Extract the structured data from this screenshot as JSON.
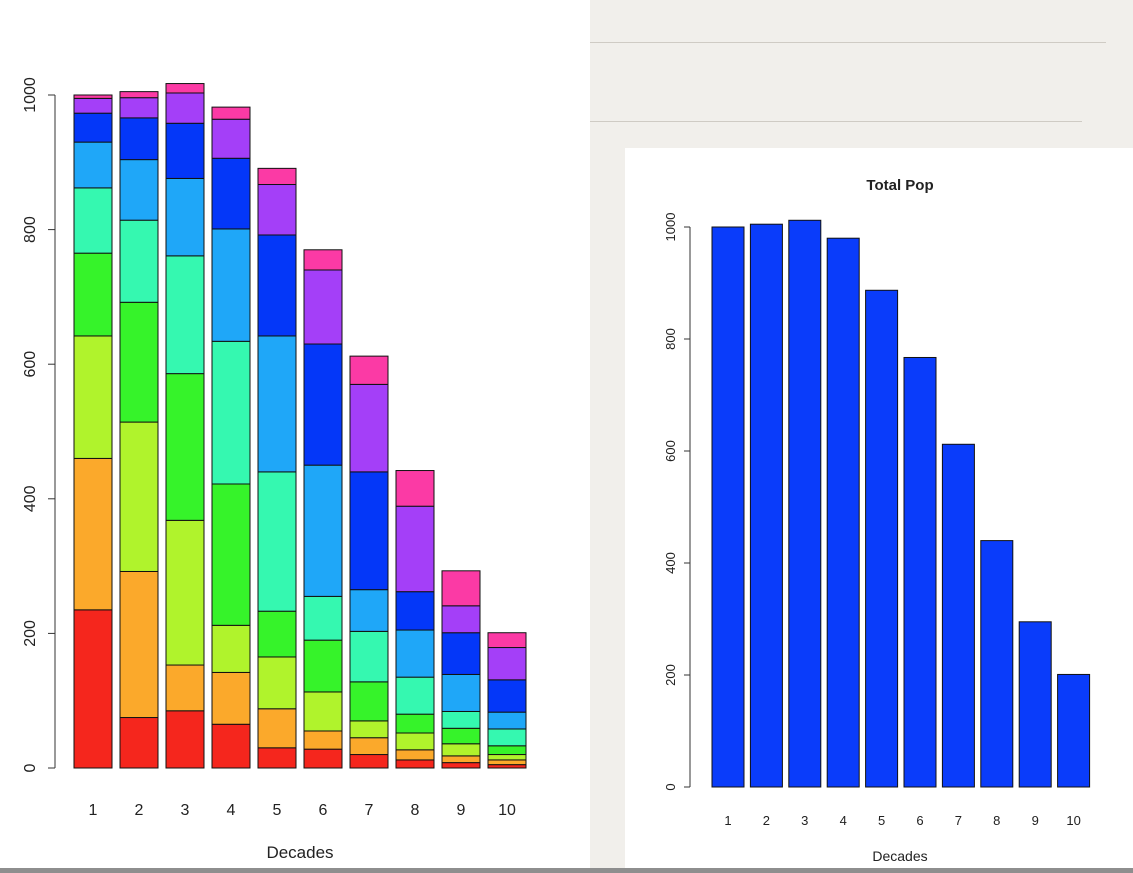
{
  "chart_data": [
    {
      "type": "bar",
      "stacked": true,
      "title": "",
      "xlabel": "Decades",
      "ylabel": "",
      "ylim": [
        0,
        1000
      ],
      "yticks": [
        0,
        200,
        400,
        600,
        800,
        1000
      ],
      "categories": [
        "1",
        "2",
        "3",
        "4",
        "5",
        "6",
        "7",
        "8",
        "9",
        "10"
      ],
      "series": [
        {
          "color": "#f5261d",
          "values": [
            235,
            75,
            85,
            65,
            30,
            28,
            20,
            12,
            8,
            5
          ]
        },
        {
          "color": "#fba92b",
          "values": [
            225,
            217,
            68,
            77,
            58,
            27,
            25,
            15,
            10,
            7
          ]
        },
        {
          "color": "#b0f32c",
          "values": [
            182,
            222,
            215,
            70,
            77,
            58,
            25,
            25,
            18,
            8
          ]
        },
        {
          "color": "#36f32a",
          "values": [
            123,
            178,
            218,
            210,
            68,
            77,
            58,
            28,
            23,
            13
          ]
        },
        {
          "color": "#35f8b0",
          "values": [
            97,
            122,
            175,
            212,
            207,
            65,
            75,
            55,
            25,
            25
          ]
        },
        {
          "color": "#1fa7f8",
          "values": [
            68,
            90,
            115,
            167,
            202,
            195,
            62,
            70,
            55,
            25
          ]
        },
        {
          "color": "#0437f8",
          "values": [
            43,
            62,
            82,
            105,
            150,
            180,
            175,
            57,
            62,
            48
          ]
        },
        {
          "color": "#a43ff8",
          "values": [
            22,
            30,
            45,
            58,
            75,
            110,
            130,
            127,
            40,
            48
          ]
        },
        {
          "color": "#fb3aa5",
          "values": [
            5,
            9,
            14,
            18,
            24,
            30,
            42,
            53,
            52,
            22
          ]
        }
      ],
      "grid": false
    },
    {
      "type": "bar",
      "title": "Total Pop",
      "xlabel": "Decades",
      "ylabel": "",
      "ylim": [
        0,
        1000
      ],
      "yticks": [
        0,
        200,
        400,
        600,
        800,
        1000
      ],
      "categories": [
        "1",
        "2",
        "3",
        "4",
        "5",
        "6",
        "7",
        "8",
        "9",
        "10"
      ],
      "values": [
        1000,
        1005,
        1012,
        980,
        887,
        767,
        612,
        440,
        295,
        201
      ],
      "color": "#0a3cfa",
      "grid": false
    }
  ]
}
